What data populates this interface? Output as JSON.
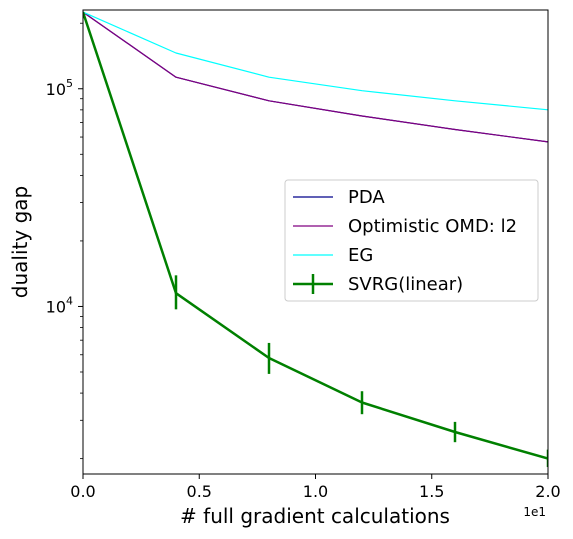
{
  "chart_data": {
    "type": "line",
    "xlabel": "# full gradient calculations",
    "ylabel": "duality gap",
    "x_offset_label": "1e1",
    "xlim": [
      0,
      20
    ],
    "ylim": [
      1700,
      230000
    ],
    "y_scale": "log",
    "grid": false,
    "legend_position": "center-right",
    "x_ticks": [
      {
        "value": 0,
        "label": "0.0"
      },
      {
        "value": 5,
        "label": "0.5"
      },
      {
        "value": 10,
        "label": "1.0"
      },
      {
        "value": 15,
        "label": "1.5"
      },
      {
        "value": 20,
        "label": "2.0"
      }
    ],
    "y_major_ticks": [
      {
        "value": 10000,
        "base": "10",
        "exp": "4"
      },
      {
        "value": 100000,
        "base": "10",
        "exp": "5"
      }
    ],
    "y_minor_ticks": [
      2000,
      3000,
      4000,
      5000,
      6000,
      7000,
      8000,
      9000,
      20000,
      30000,
      40000,
      50000,
      60000,
      70000,
      80000,
      90000,
      200000
    ],
    "series": [
      {
        "name": "PDA",
        "color": "#00008b",
        "width": 1.2,
        "x": [
          0,
          4,
          8,
          12,
          16,
          20
        ],
        "y": [
          225000,
          113000,
          88000,
          75000,
          65000,
          57000
        ]
      },
      {
        "name": "Optimistic OMD: l2",
        "color": "#800080",
        "width": 1.2,
        "x": [
          0,
          4,
          8,
          12,
          16,
          20
        ],
        "y": [
          225000,
          113000,
          88000,
          75000,
          65000,
          57000
        ]
      },
      {
        "name": "EG",
        "color": "#00ffff",
        "width": 1.2,
        "x": [
          0,
          4,
          8,
          12,
          16,
          20
        ],
        "y": [
          225000,
          146000,
          113000,
          98000,
          88000,
          80000
        ]
      },
      {
        "name": "SVRG(linear)",
        "color": "#008000",
        "width": 2.5,
        "x": [
          0,
          4,
          8,
          12,
          16,
          20
        ],
        "y": [
          225000,
          11500,
          5800,
          3620,
          2650,
          2000
        ],
        "err_low": [
          225000,
          9700,
          4900,
          3200,
          2380,
          1830
        ],
        "err_high": [
          225000,
          13900,
          6800,
          4080,
          2950,
          2200
        ]
      }
    ]
  }
}
